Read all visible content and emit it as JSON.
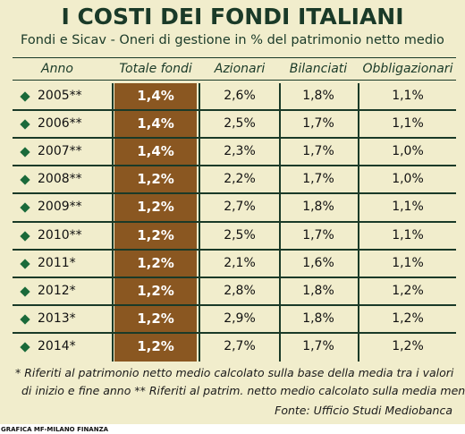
{
  "chart_data": {
    "type": "table",
    "title": "I COSTI DEI FONDI ITALIANI",
    "subtitle": "Fondi e Sicav - Oneri di gestione in % del patrimonio netto medio",
    "columns": [
      "Anno",
      "Totale fondi",
      "Azionari",
      "Bilanciati",
      "Obbligazionari"
    ],
    "rows": [
      [
        "2005**",
        "1,4%",
        "2,6%",
        "1,8%",
        "1,1%"
      ],
      [
        "2006**",
        "1,4%",
        "2,5%",
        "1,7%",
        "1,1%"
      ],
      [
        "2007**",
        "1,4%",
        "2,3%",
        "1,7%",
        "1,0%"
      ],
      [
        "2008**",
        "1,2%",
        "2,2%",
        "1,7%",
        "1,0%"
      ],
      [
        "2009**",
        "1,2%",
        "2,7%",
        "1,8%",
        "1,1%"
      ],
      [
        "2010**",
        "1,2%",
        "2,5%",
        "1,7%",
        "1,1%"
      ],
      [
        "2011*",
        "1,2%",
        "2,1%",
        "1,6%",
        "1,1%"
      ],
      [
        "2012*",
        "1,2%",
        "2,8%",
        "1,8%",
        "1,2%"
      ],
      [
        "2013*",
        "1,2%",
        "2,9%",
        "1,8%",
        "1,2%"
      ],
      [
        "2014*",
        "1,2%",
        "2,7%",
        "1,7%",
        "1,2%"
      ]
    ],
    "highlight_column": "Totale fondi",
    "colors": {
      "background": "#f1edcc",
      "highlight": "#8a5721",
      "text": "#1a3a28",
      "bullet": "#1a6a3a"
    }
  },
  "footnotes": {
    "line1": "* Riferiti al patrimonio netto medio calcolato sulla base della media tra i valori",
    "line2": "di inizio e fine anno   ** Riferiti al patrim. netto medio calcolato sulla media mensile",
    "source": "Fonte: Ufficio Studi Mediobanca"
  },
  "credit": "GRAFICA MF-MILANO FINANZA",
  "icons": {
    "row_bullet": "diamond-icon"
  }
}
